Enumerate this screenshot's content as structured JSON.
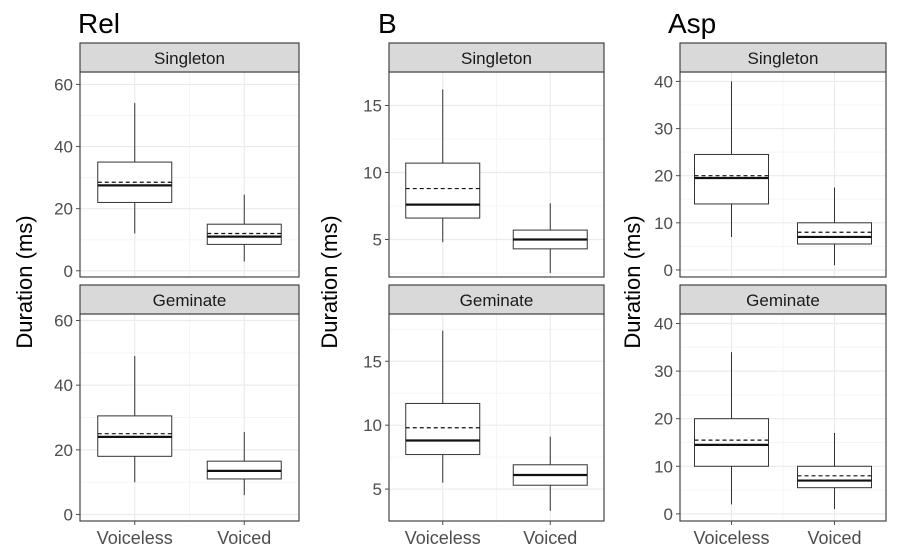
{
  "chart_data": [
    {
      "type": "box",
      "title": "Rel",
      "ylabel": "Duration (ms)",
      "categories": [
        "Voiceless",
        "Voiced"
      ],
      "facets": [
        {
          "label": "Singleton",
          "ylim": [
            -2,
            64
          ],
          "yticks": [
            0,
            20,
            40,
            60
          ],
          "boxes": [
            {
              "whisker_low": 12,
              "q1": 22,
              "median": 27.5,
              "mean": 28.5,
              "q3": 35,
              "whisker_high": 54
            },
            {
              "whisker_low": 3,
              "q1": 8.5,
              "median": 11,
              "mean": 12,
              "q3": 15,
              "whisker_high": 24.5
            }
          ]
        },
        {
          "label": "Geminate",
          "ylim": [
            -2,
            62
          ],
          "yticks": [
            0,
            20,
            40,
            60
          ],
          "boxes": [
            {
              "whisker_low": 10,
              "q1": 18,
              "median": 24,
              "mean": 25,
              "q3": 30.5,
              "whisker_high": 49
            },
            {
              "whisker_low": 6,
              "q1": 11,
              "median": 13.5,
              "mean": 13.5,
              "q3": 16.5,
              "whisker_high": 25.5
            }
          ]
        }
      ]
    },
    {
      "type": "box",
      "title": "B",
      "ylabel": "Duration (ms)",
      "categories": [
        "Voiceless",
        "Voiced"
      ],
      "facets": [
        {
          "label": "Singleton",
          "ylim": [
            2.2,
            17.5
          ],
          "yticks": [
            5,
            10,
            15
          ],
          "boxes": [
            {
              "whisker_low": 4.8,
              "q1": 6.6,
              "median": 7.6,
              "mean": 8.8,
              "q3": 10.7,
              "whisker_high": 16.2
            },
            {
              "whisker_low": 2.5,
              "q1": 4.3,
              "median": 5.0,
              "mean": 5.0,
              "q3": 5.7,
              "whisker_high": 7.7
            }
          ]
        },
        {
          "label": "Geminate",
          "ylim": [
            2.5,
            18.7
          ],
          "yticks": [
            5,
            10,
            15
          ],
          "boxes": [
            {
              "whisker_low": 5.5,
              "q1": 7.7,
              "median": 8.8,
              "mean": 9.8,
              "q3": 11.7,
              "whisker_high": 17.4
            },
            {
              "whisker_low": 3.3,
              "q1": 5.3,
              "median": 6.1,
              "mean": 6.1,
              "q3": 6.9,
              "whisker_high": 9.1
            }
          ]
        }
      ]
    },
    {
      "type": "box",
      "title": "Asp",
      "ylabel": "Duration (ms)",
      "categories": [
        "Voiceless",
        "Voiced"
      ],
      "facets": [
        {
          "label": "Singleton",
          "ylim": [
            -1.5,
            42
          ],
          "yticks": [
            0,
            10,
            20,
            30,
            40
          ],
          "boxes": [
            {
              "whisker_low": 7,
              "q1": 14,
              "median": 19.5,
              "mean": 20,
              "q3": 24.5,
              "whisker_high": 40
            },
            {
              "whisker_low": 1,
              "q1": 5.5,
              "median": 7,
              "mean": 8,
              "q3": 10,
              "whisker_high": 17.5
            }
          ]
        },
        {
          "label": "Geminate",
          "ylim": [
            -1.5,
            42
          ],
          "yticks": [
            0,
            10,
            20,
            30,
            40
          ],
          "boxes": [
            {
              "whisker_low": 2,
              "q1": 10,
              "median": 14.5,
              "mean": 15.5,
              "q3": 20,
              "whisker_high": 34
            },
            {
              "whisker_low": 1,
              "q1": 5.5,
              "median": 7,
              "mean": 8,
              "q3": 10,
              "whisker_high": 17
            }
          ]
        }
      ]
    }
  ],
  "style": {
    "strip_fill": "#d9d9d9",
    "strip_border": "#333333",
    "grid_major": "#ebebeb",
    "grid_minor": "#f5f5f5",
    "panel_border": "#333333",
    "box_stroke": "#333333",
    "tick_color": "#4d4d4d"
  }
}
